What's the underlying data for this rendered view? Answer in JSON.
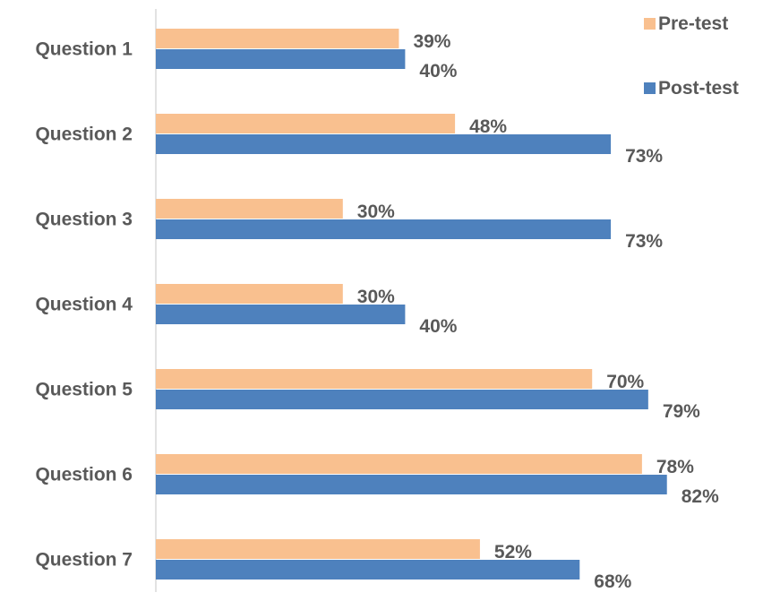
{
  "chart_data": {
    "type": "bar",
    "orientation": "horizontal",
    "categories": [
      "Question 1",
      "Question 2",
      "Question 3",
      "Question 4",
      "Question 5",
      "Question 6",
      "Question 7"
    ],
    "series": [
      {
        "name": "Pre-test",
        "color": "#F9C08F",
        "values": [
          39,
          48,
          30,
          30,
          70,
          78,
          52
        ],
        "labels": [
          "39%",
          "48%",
          "30%",
          "30%",
          "70%",
          "78%",
          "52%"
        ]
      },
      {
        "name": "Post-test",
        "color": "#4E81BD",
        "values": [
          40,
          73,
          73,
          40,
          79,
          82,
          68
        ],
        "labels": [
          "40%",
          "73%",
          "73%",
          "40%",
          "79%",
          "82%",
          "68%"
        ]
      }
    ],
    "xlim": [
      0,
      100
    ],
    "value_unit": "%",
    "grid": false,
    "legend_position": "top-right",
    "axis_color": "#D9D9D9",
    "label_color": "#595959"
  }
}
